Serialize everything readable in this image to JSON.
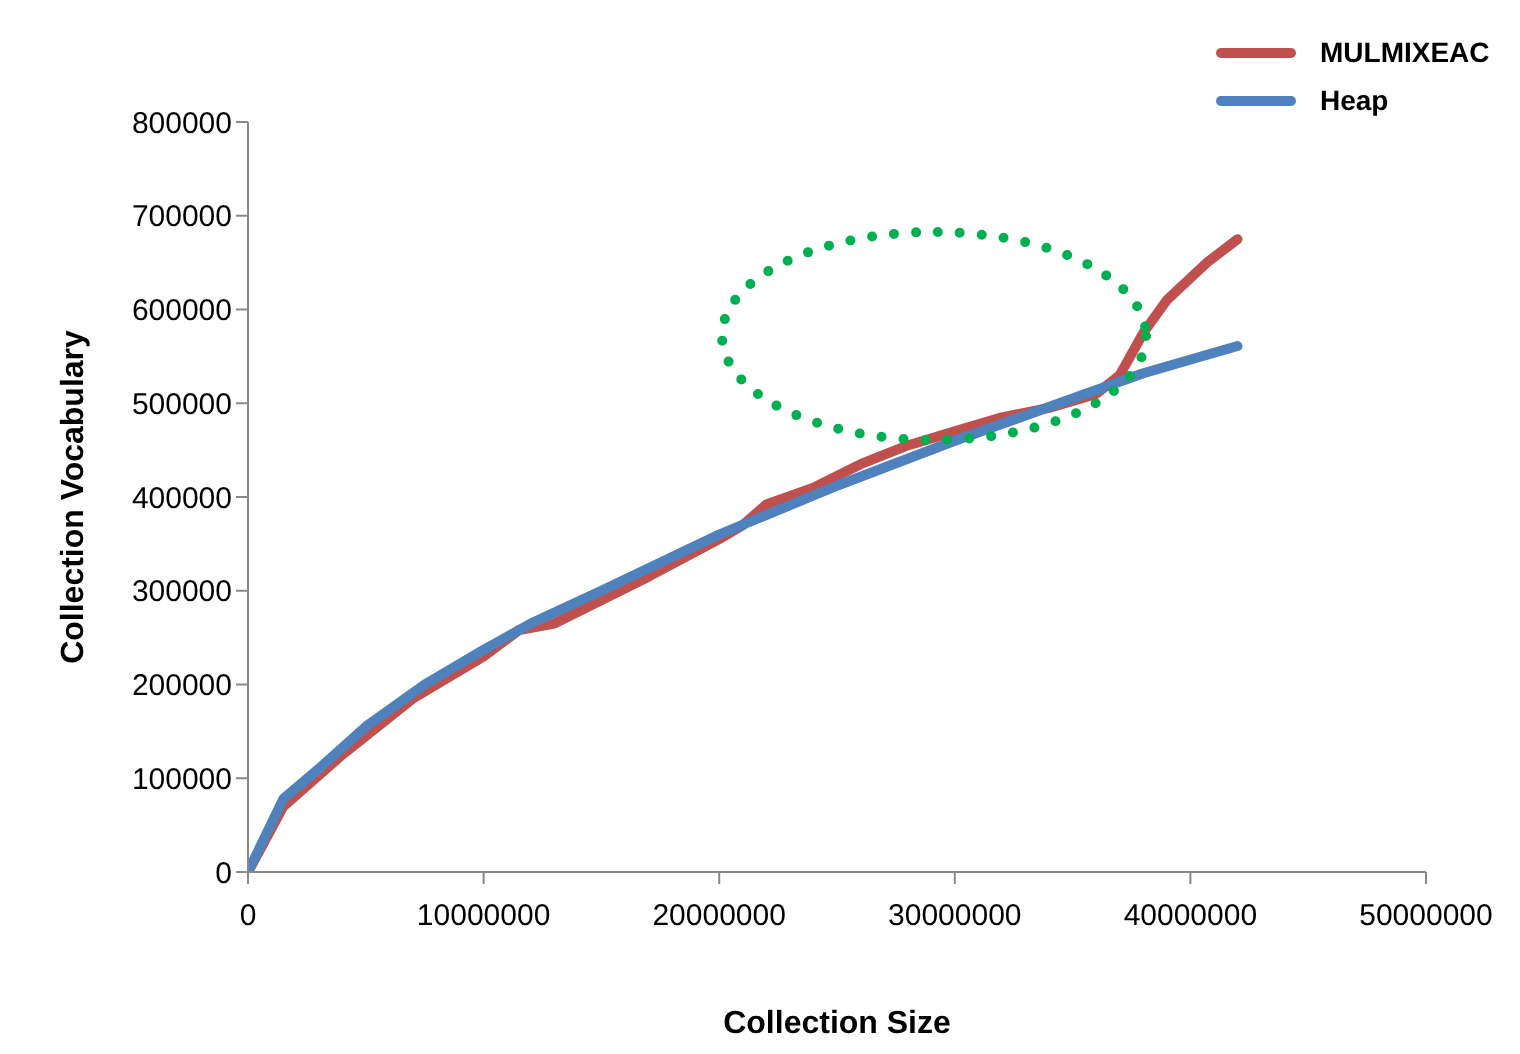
{
  "chart_data": {
    "type": "line",
    "xlabel": "Collection Size",
    "ylabel": "Collection Vocabulary",
    "xlim": [
      0,
      50000000
    ],
    "xticks": [
      0,
      10000000,
      20000000,
      30000000,
      40000000,
      50000000
    ],
    "ylim": [
      0,
      800000
    ],
    "yticks": [
      0,
      100000,
      200000,
      300000,
      400000,
      500000,
      600000,
      700000,
      800000
    ],
    "grid": false,
    "legend": "top right",
    "marker": "none",
    "line_style": "solid",
    "series": [
      {
        "name": "MULMIXEAC",
        "color": "#c0504d",
        "x": [
          0,
          1500000,
          4000000,
          7000000,
          10000000,
          11500000,
          13000000,
          17000000,
          20000000,
          21000000,
          22000000,
          24000000,
          26000000,
          28000000,
          30000000,
          32000000,
          34000000,
          36000000,
          37000000,
          38000000,
          39000000,
          40700000,
          42000000
        ],
        "values": [
          0,
          70000,
          125000,
          185000,
          230000,
          258000,
          265000,
          315000,
          355000,
          370000,
          392000,
          410000,
          435000,
          455000,
          470000,
          485000,
          495000,
          510000,
          530000,
          575000,
          610000,
          650000,
          675000
        ]
      },
      {
        "name": "Heap",
        "color": "#4f81bd",
        "x": [
          0,
          1500000,
          3000000,
          5000000,
          7500000,
          10000000,
          12000000,
          15000000,
          20000000,
          25000000,
          30000000,
          35000000,
          38000000,
          42000000
        ],
        "values": [
          0,
          78000,
          110000,
          155000,
          200000,
          237000,
          265000,
          300000,
          360000,
          412000,
          460000,
          505000,
          532000,
          561000
        ]
      }
    ]
  }
}
